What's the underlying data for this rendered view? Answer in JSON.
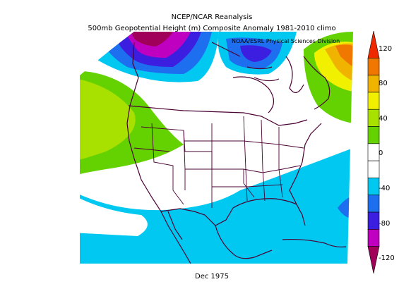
{
  "title_line1": "NCEP/NCAR Reanalysis",
  "title_line2": "500mb Geopotential Height (m) Composite Anomaly 1981-2010 climo",
  "credit": "NOAA/ESRL Physical Sciences Division",
  "footer": "Dec 1975",
  "colorbar": {
    "labels": [
      "120",
      "80",
      "40",
      "0",
      "-40",
      "-80",
      "-120"
    ],
    "colors": [
      "#a0005a",
      "#c000c0",
      "#3c1ee0",
      "#1e6ef0",
      "#00c8f0",
      "#ffffff",
      "#ffffff",
      "#64d200",
      "#a8e100",
      "#f0f000",
      "#f0b400",
      "#f07800",
      "#f02800"
    ]
  }
}
